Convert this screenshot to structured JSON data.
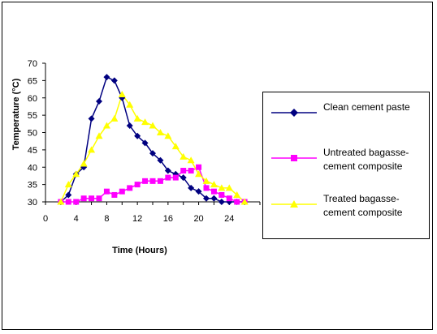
{
  "chart_data": {
    "type": "line",
    "title": "",
    "xlabel": "Time (Hours)",
    "ylabel": "Temperature (°C)",
    "xlim": [
      0,
      28
    ],
    "ylim": [
      30,
      70
    ],
    "x_ticks": [
      0,
      4,
      8,
      12,
      16,
      20,
      24
    ],
    "y_ticks": [
      30,
      35,
      40,
      45,
      50,
      55,
      60,
      65,
      70
    ],
    "grid": false,
    "legend_position": "right",
    "series": [
      {
        "name": "Clean cement paste",
        "marker": "diamond",
        "color": "#000080",
        "x": [
          2,
          3,
          4,
          5,
          6,
          7,
          8,
          9,
          10,
          11,
          12,
          13,
          14,
          15,
          16,
          17,
          18,
          19,
          20,
          21,
          22,
          23,
          24,
          25,
          26
        ],
        "y": [
          30,
          32,
          38,
          40,
          54,
          59,
          66,
          65,
          60,
          52,
          49,
          47,
          44,
          42,
          39,
          38,
          37,
          34,
          33,
          31,
          31,
          30,
          30,
          30,
          30
        ]
      },
      {
        "name": "Untreated bagasse-cement composite",
        "marker": "square",
        "color": "#ff00ff",
        "x": [
          2,
          3,
          4,
          5,
          6,
          7,
          8,
          9,
          10,
          11,
          12,
          13,
          14,
          15,
          16,
          17,
          18,
          19,
          20,
          21,
          22,
          23,
          24,
          25,
          26
        ],
        "y": [
          30,
          30,
          30,
          31,
          31,
          31,
          33,
          32,
          33,
          34,
          35,
          36,
          36,
          36,
          37,
          37,
          39,
          39,
          40,
          34,
          33,
          32,
          31,
          30,
          30
        ]
      },
      {
        "name": "Treated bagasse-cement composite",
        "marker": "triangle",
        "color": "#ffff00",
        "x": [
          2,
          3,
          4,
          5,
          6,
          7,
          8,
          9,
          10,
          11,
          12,
          13,
          14,
          15,
          16,
          17,
          18,
          19,
          20,
          21,
          22,
          23,
          24,
          25,
          26
        ],
        "y": [
          30,
          35,
          38,
          41,
          45,
          49,
          52,
          54,
          61,
          58,
          54,
          53,
          52,
          50,
          49,
          46,
          43,
          42,
          38,
          36,
          35,
          34,
          34,
          32,
          30
        ]
      }
    ]
  }
}
